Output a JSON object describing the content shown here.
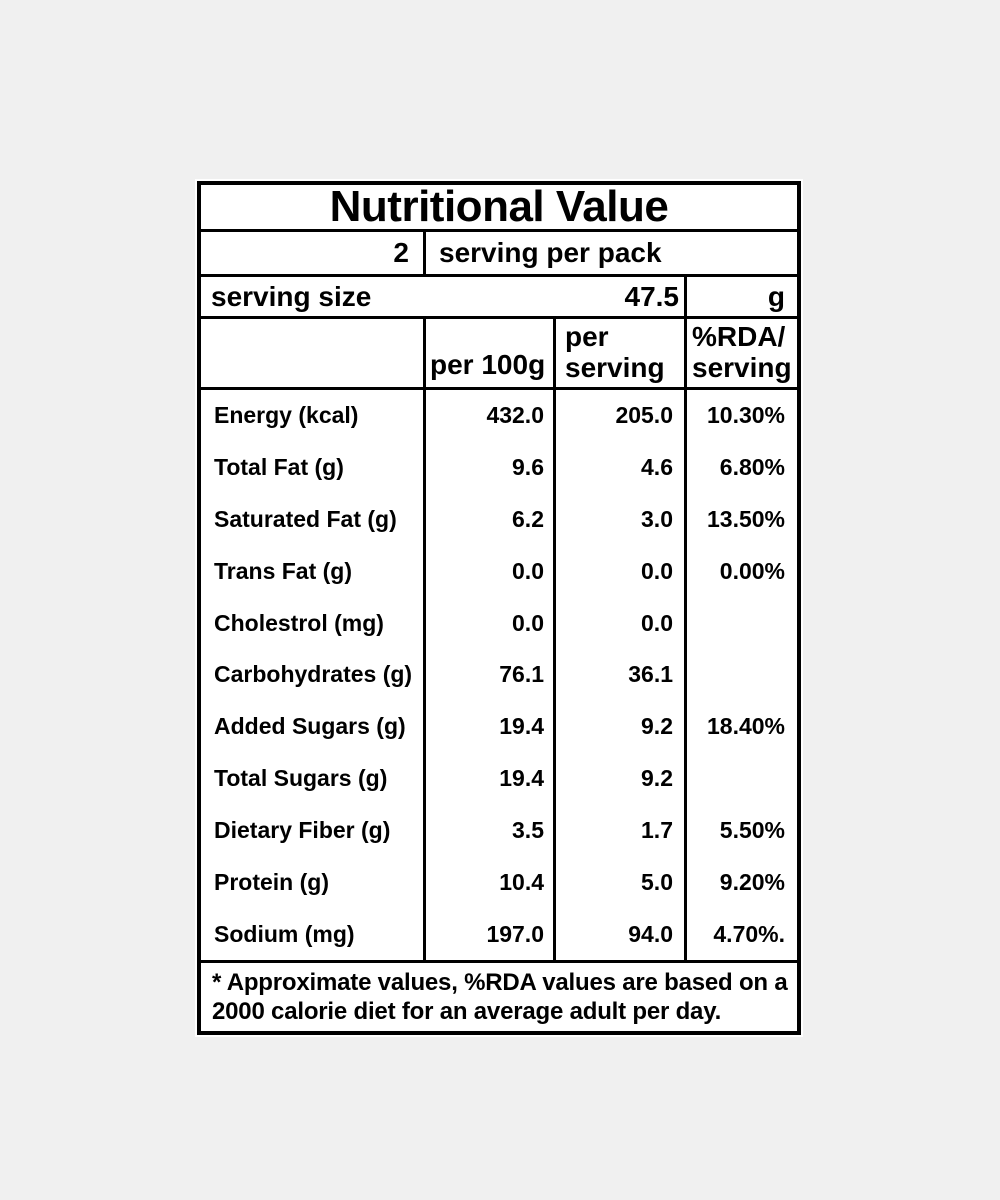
{
  "colors": {
    "page_background": "#f0f0f0",
    "label_background": "#ffffff",
    "line_color": "#000000",
    "text_color": "#000000"
  },
  "title": "Nutritional Value",
  "pack_row": {
    "count": "2",
    "label": "serving per pack"
  },
  "serving_size_row": {
    "label": "serving size",
    "value": "47.5",
    "unit": "g"
  },
  "column_headers": {
    "per_100g": "per 100g",
    "per_serving": [
      "per",
      "serving"
    ],
    "rda_per_serving": [
      "%RDA/",
      "serving"
    ]
  },
  "rows": [
    {
      "label": "Energy (kcal)",
      "per_100g": "432.0",
      "per_serving": "205.0",
      "rda": "10.30%"
    },
    {
      "label": "Total Fat (g)",
      "per_100g": "9.6",
      "per_serving": "4.6",
      "rda": "6.80%"
    },
    {
      "label": "Saturated Fat (g)",
      "per_100g": "6.2",
      "per_serving": "3.0",
      "rda": "13.50%"
    },
    {
      "label": "Trans Fat (g)",
      "per_100g": "0.0",
      "per_serving": "0.0",
      "rda": "0.00%"
    },
    {
      "label": "Cholestrol (mg)",
      "per_100g": "0.0",
      "per_serving": "0.0",
      "rda": ""
    },
    {
      "label": "Carbohydrates (g)",
      "per_100g": "76.1",
      "per_serving": "36.1",
      "rda": ""
    },
    {
      "label": "Added Sugars (g)",
      "per_100g": "19.4",
      "per_serving": "9.2",
      "rda": "18.40%"
    },
    {
      "label": "Total Sugars (g)",
      "per_100g": "19.4",
      "per_serving": "9.2",
      "rda": ""
    },
    {
      "label": "Dietary Fiber (g)",
      "per_100g": "3.5",
      "per_serving": "1.7",
      "rda": "5.50%"
    },
    {
      "label": "Protein (g)",
      "per_100g": "10.4",
      "per_serving": "5.0",
      "rda": "9.20%"
    },
    {
      "label": "Sodium (mg)",
      "per_100g": "197.0",
      "per_serving": "94.0",
      "rda": "4.70%."
    }
  ],
  "footnote": {
    "line1": "* Approximate values, %RDA values are based on a",
    "line2": "2000 calorie diet for an average adult per day."
  }
}
